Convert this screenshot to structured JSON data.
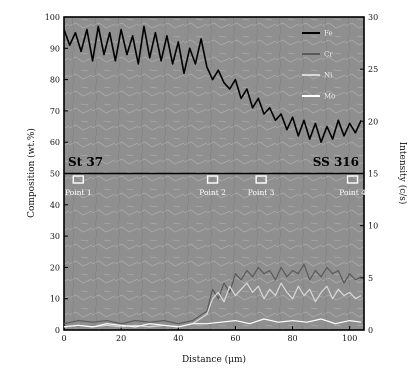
{
  "chart_data": {
    "type": "line",
    "xlabel": "Distance (μm)",
    "ylabel": "Composition (wt.%)",
    "y2label": "Intensity (c/s)",
    "xlim": [
      0,
      105
    ],
    "ylim": [
      0,
      100
    ],
    "y2lim": [
      0,
      30
    ],
    "xticks": [
      0,
      20,
      40,
      60,
      80,
      100
    ],
    "yticks": [
      0,
      10,
      20,
      30,
      40,
      50,
      60,
      70,
      80,
      90,
      100
    ],
    "y2ticks": [
      0,
      5,
      10,
      15,
      20,
      25,
      30
    ],
    "regions": [
      {
        "label": "St 37",
        "side": "left"
      },
      {
        "label": "SS 316",
        "side": "right"
      }
    ],
    "points": [
      {
        "label": "Point 1",
        "x": 5
      },
      {
        "label": "Point 2",
        "x": 52
      },
      {
        "label": "Point 3",
        "x": 69
      },
      {
        "label": "Point 4",
        "x": 101
      }
    ],
    "legend_position": "top-right",
    "series": [
      {
        "name": "Fe",
        "color": "#000000",
        "x": [
          0,
          2,
          4,
          6,
          8,
          10,
          12,
          14,
          16,
          18,
          20,
          22,
          24,
          26,
          28,
          30,
          32,
          34,
          36,
          38,
          40,
          42,
          44,
          46,
          48,
          50,
          52,
          54,
          56,
          58,
          60,
          62,
          64,
          66,
          68,
          70,
          72,
          74,
          76,
          78,
          80,
          82,
          84,
          86,
          88,
          90,
          92,
          94,
          96,
          98,
          100,
          102,
          104
        ],
        "y": [
          96,
          91,
          95,
          89,
          96,
          86,
          97,
          88,
          95,
          86,
          96,
          88,
          94,
          85,
          97,
          87,
          95,
          86,
          94,
          85,
          92,
          82,
          90,
          85,
          93,
          84,
          80,
          83,
          79,
          77,
          80,
          74,
          77,
          71,
          74,
          69,
          71,
          67,
          69,
          64,
          68,
          62,
          67,
          61,
          66,
          60,
          65,
          61,
          67,
          62,
          66,
          63,
          67
        ]
      },
      {
        "name": "Cr",
        "color": "#5a5a5a",
        "x": [
          0,
          5,
          10,
          15,
          20,
          25,
          30,
          35,
          40,
          45,
          50,
          52,
          54,
          56,
          58,
          60,
          62,
          64,
          66,
          68,
          70,
          72,
          74,
          76,
          78,
          80,
          82,
          84,
          86,
          88,
          90,
          92,
          94,
          96,
          98,
          100,
          102,
          104
        ],
        "y": [
          2,
          3,
          2.5,
          3,
          2,
          3,
          2.5,
          3,
          2,
          3,
          6,
          13,
          10,
          15,
          12,
          18,
          16,
          19,
          17,
          20,
          18,
          19,
          16,
          20,
          17,
          19,
          18,
          21,
          16,
          19,
          17,
          20,
          18,
          19,
          15,
          18,
          16,
          17
        ]
      },
      {
        "name": "Ni",
        "color": "#d9d9d9",
        "x": [
          0,
          5,
          10,
          15,
          20,
          25,
          30,
          35,
          40,
          45,
          50,
          52,
          54,
          56,
          58,
          60,
          62,
          64,
          66,
          68,
          70,
          72,
          74,
          76,
          78,
          80,
          82,
          84,
          86,
          88,
          90,
          92,
          94,
          96,
          98,
          100,
          102,
          104
        ],
        "y": [
          1,
          1.5,
          1,
          1.5,
          1,
          1.5,
          1,
          1.5,
          1,
          2,
          5,
          10,
          12,
          9,
          14,
          11,
          13,
          15,
          12,
          14,
          10,
          13,
          11,
          15,
          12,
          10,
          14,
          11,
          13,
          9,
          12,
          14,
          10,
          13,
          11,
          12,
          10,
          11
        ]
      },
      {
        "name": "Mo",
        "color": "#ffffff",
        "x": [
          0,
          5,
          10,
          15,
          20,
          25,
          30,
          35,
          40,
          45,
          50,
          55,
          60,
          65,
          70,
          75,
          80,
          85,
          90,
          95,
          100,
          104
        ],
        "y": [
          1,
          1.5,
          1,
          2,
          1.5,
          1,
          2,
          1.5,
          1,
          2,
          2,
          2.5,
          3,
          2,
          3.5,
          2.5,
          3,
          2.5,
          3.5,
          2,
          3,
          2.5
        ]
      }
    ]
  }
}
